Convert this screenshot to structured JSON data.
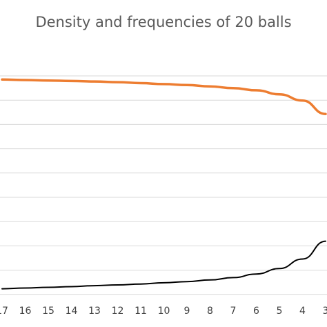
{
  "chart_data": {
    "type": "line",
    "title": "Density and frequencies of 20 balls",
    "xlabel": "",
    "ylabel": "",
    "categories": [
      "17",
      "16",
      "15",
      "14",
      "13",
      "12",
      "11",
      "10",
      "9",
      "8",
      "7",
      "6",
      "5",
      "4",
      "3"
    ],
    "series": [
      {
        "color": "#ED7D31",
        "values": [
          8.8,
          8.78,
          8.76,
          8.74,
          8.72,
          8.69,
          8.65,
          8.61,
          8.57,
          8.51,
          8.44,
          8.35,
          8.18,
          7.92,
          7.35
        ]
      },
      {
        "color": "#000000",
        "values": [
          0.0,
          0.03,
          0.06,
          0.09,
          0.13,
          0.16,
          0.2,
          0.25,
          0.3,
          0.37,
          0.47,
          0.62,
          0.85,
          1.25,
          2.0
        ]
      }
    ],
    "ylim": [
      -0.1,
      10
    ],
    "grid": true,
    "legend": "none"
  }
}
